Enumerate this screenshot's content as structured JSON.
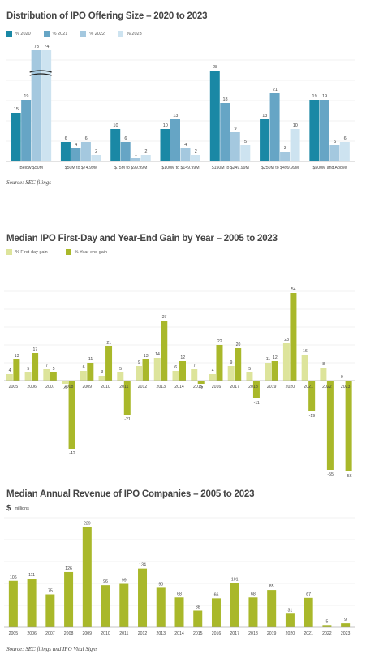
{
  "colors": {
    "c2020": "#1a88a5",
    "c2021": "#66a5c5",
    "c2022": "#a4c8df",
    "c2023": "#cde3f0",
    "first_day": "#dde49b",
    "year_end": "#a9b82a",
    "revenue": "#a9b82a",
    "grid": "#e3e3e3"
  },
  "chart_data": [
    {
      "type": "bar",
      "title": "Distribution of IPO Offering Size – 2020 to 2023",
      "categories": [
        "Below $50M",
        "$50M to $74.99M",
        "$75M to $99.99M",
        "$100M to $149.99M",
        "$150M to $249.99M",
        "$250M to $499.99M",
        "$500M and Above"
      ],
      "series": [
        {
          "name": "% 2020",
          "values": [
            15,
            6,
            10,
            10,
            28,
            13,
            19
          ]
        },
        {
          "name": "% 2021",
          "values": [
            19,
            4,
            6,
            13,
            18,
            21,
            19
          ]
        },
        {
          "name": "% 2022",
          "values": [
            73,
            6,
            1,
            4,
            9,
            3,
            5
          ]
        },
        {
          "name": "% 2023",
          "values": [
            74,
            2,
            2,
            2,
            5,
            10,
            6
          ]
        }
      ],
      "axis_break": "25",
      "grid": true,
      "legend": "top-left",
      "source": "Source: SEC filings"
    },
    {
      "type": "bar",
      "title": "Median IPO First-Day and Year-End Gain by Year – 2005 to 2023",
      "categories": [
        "2005",
        "2006",
        "2007",
        "2008",
        "2009",
        "2010",
        "2011",
        "2012",
        "2013",
        "2014",
        "2015",
        "2016",
        "2017",
        "2018",
        "2019",
        "2020",
        "2021",
        "2022",
        "2023"
      ],
      "series": [
        {
          "name": "% First-day gain",
          "values": [
            4,
            5,
            7,
            -2,
            6,
            3,
            5,
            9,
            14,
            6,
            7,
            4,
            9,
            5,
            11,
            23,
            16,
            8,
            0
          ]
        },
        {
          "name": "% Year-end gain",
          "values": [
            13,
            17,
            5,
            -42,
            11,
            21,
            -21,
            13,
            37,
            12,
            -2,
            22,
            20,
            -11,
            12,
            54,
            -19,
            -55,
            -56
          ]
        }
      ],
      "grid": true,
      "legend": "top-left"
    },
    {
      "type": "bar",
      "title": "Median Annual Revenue of IPO Companies – 2005 to 2023",
      "unit": "$",
      "unit_label": "millions",
      "categories": [
        "2005",
        "2006",
        "2007",
        "2008",
        "2009",
        "2010",
        "2011",
        "2012",
        "2013",
        "2014",
        "2015",
        "2016",
        "2017",
        "2018",
        "2019",
        "2020",
        "2021",
        "2022",
        "2023"
      ],
      "values": [
        106,
        111,
        75,
        126,
        229,
        96,
        99,
        134,
        90,
        68,
        38,
        66,
        101,
        68,
        85,
        31,
        67,
        5,
        9
      ],
      "grid": true,
      "source": "Source: SEC filings and IPO Vital Signs"
    }
  ]
}
